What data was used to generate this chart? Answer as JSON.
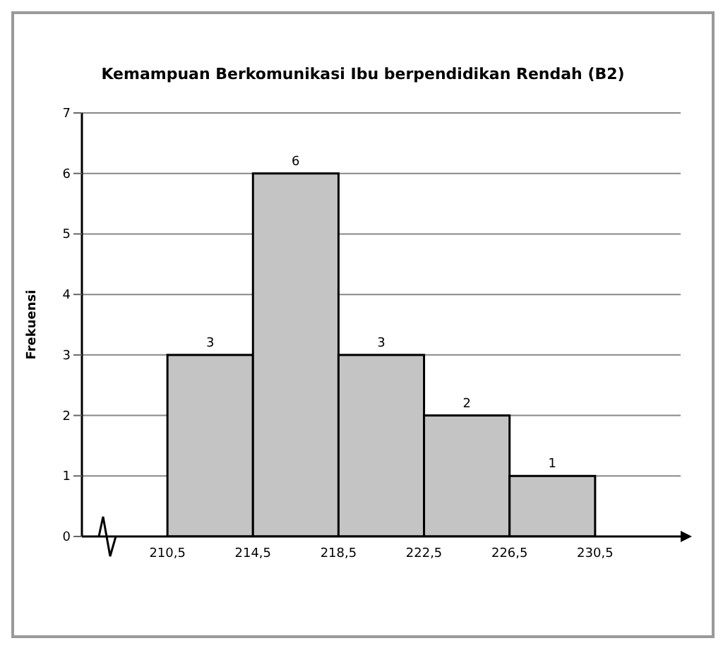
{
  "chart_data": {
    "type": "histogram",
    "title": "Kemampuan Berkomunikasi Ibu berpendidikan Rendah (B2)",
    "ylabel": "Frekuensi",
    "bins": [
      210.5,
      214.5,
      218.5,
      222.5,
      226.5,
      230.5
    ],
    "values": [
      3,
      6,
      3,
      2,
      1
    ],
    "color": "#c4c4c4",
    "xlim": [
      206.5,
      234.5
    ],
    "xticks": [
      {
        "value": 210.5,
        "label": "210,5"
      },
      {
        "value": 214.5,
        "label": "214,5"
      },
      {
        "value": 218.5,
        "label": "218,5"
      },
      {
        "value": 222.5,
        "label": "222,5"
      },
      {
        "value": 226.5,
        "label": "226,5"
      },
      {
        "value": 230.5,
        "label": "230,5"
      }
    ],
    "ylim": [
      0,
      7
    ],
    "yticks": [
      0,
      1,
      2,
      3,
      4,
      5,
      6,
      7
    ],
    "grid": "y",
    "data_labels": true
  }
}
